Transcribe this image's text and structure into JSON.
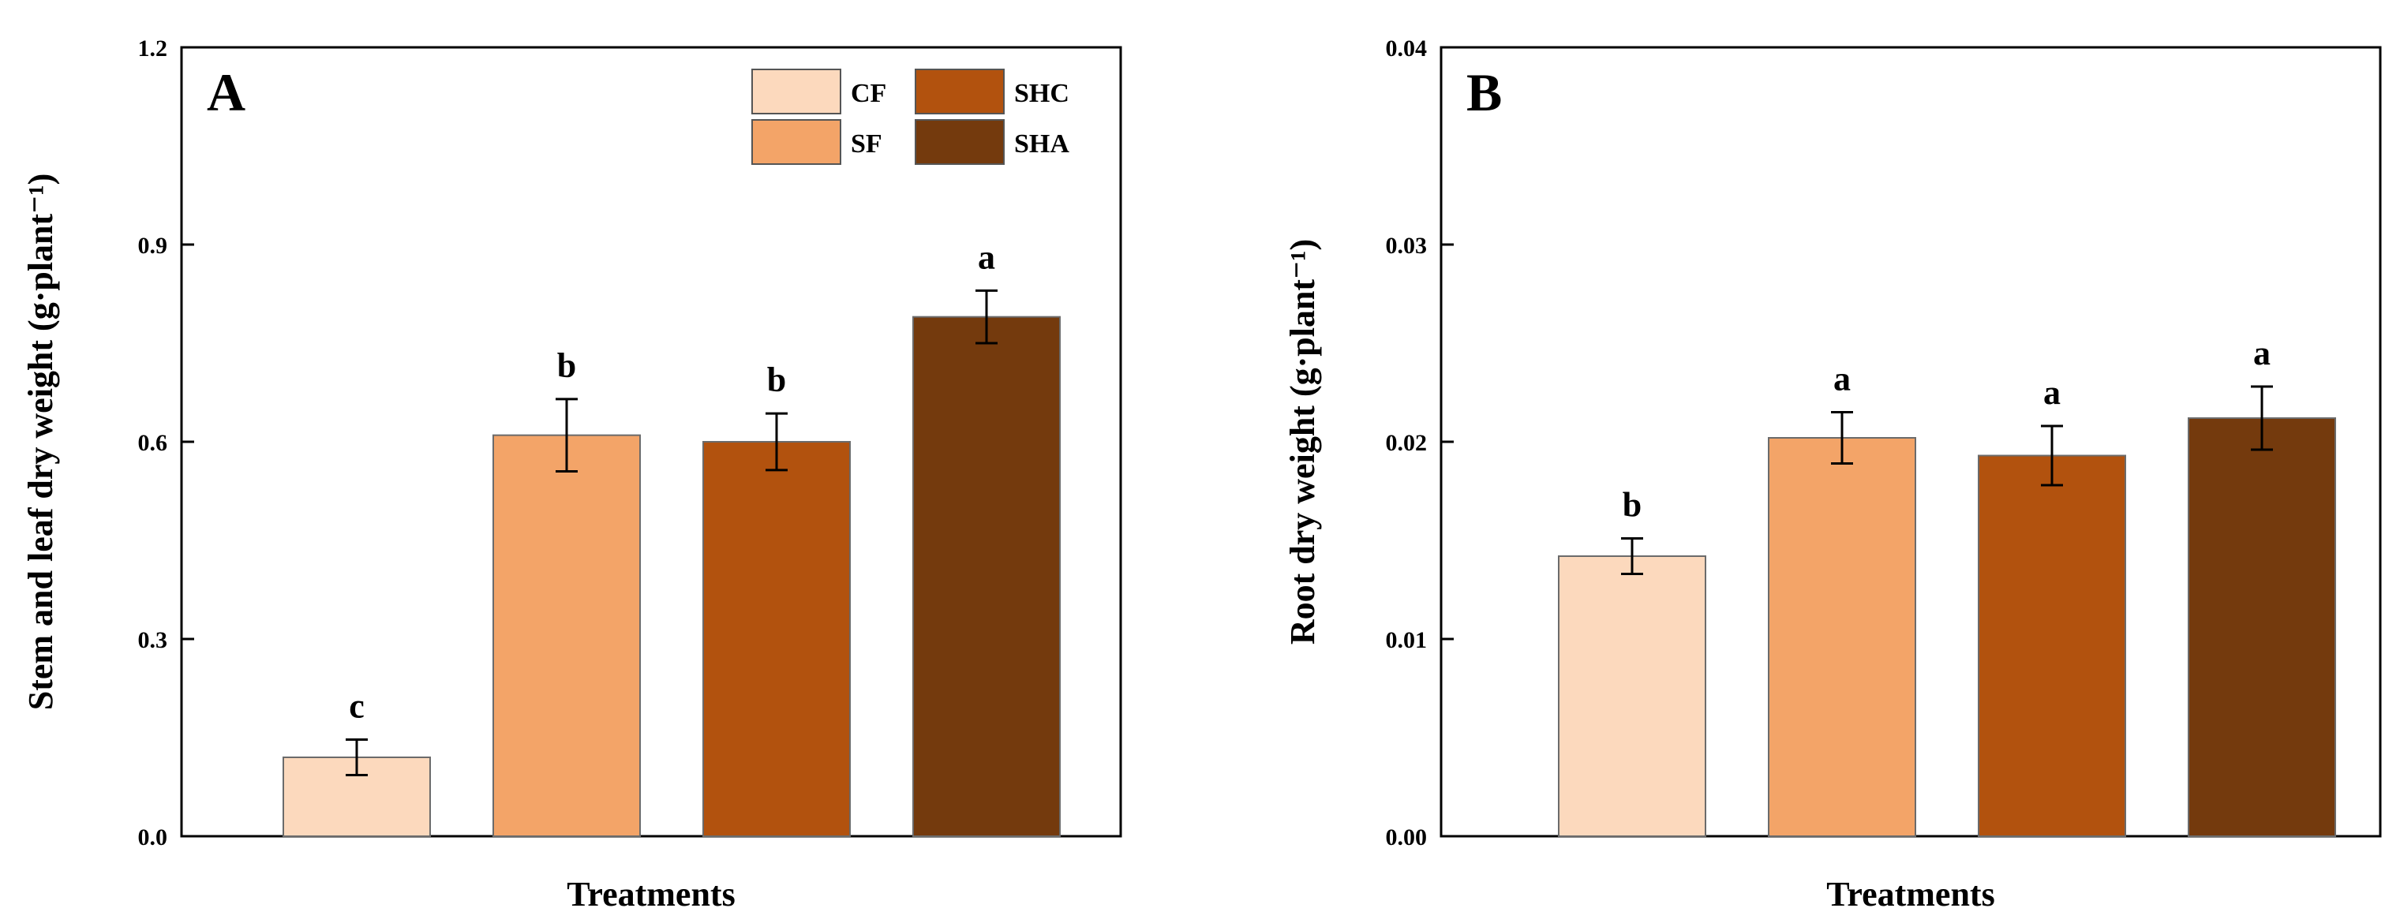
{
  "legend": {
    "entries": [
      {
        "label": "CF",
        "color": "#FCD9BD"
      },
      {
        "label": "SHC",
        "color": "#B2520E"
      },
      {
        "label": "SF",
        "color": "#F3A468"
      },
      {
        "label": "SHA",
        "color": "#743A0D"
      }
    ]
  },
  "chart_data": [
    {
      "type": "bar",
      "panel": "A",
      "categories": [
        "CF",
        "SF",
        "SHC",
        "SHA"
      ],
      "values": [
        0.12,
        0.61,
        0.6,
        0.79
      ],
      "errors": [
        0.027,
        0.055,
        0.043,
        0.04
      ],
      "significance": [
        "c",
        "b",
        "b",
        "a"
      ],
      "colors": [
        "#FCD9BD",
        "#F3A468",
        "#B2520E",
        "#743A0D"
      ],
      "xlabel": "Treatments",
      "ylabel": "Stem and leaf dry weight (g·plant⁻¹)",
      "ylim": [
        0,
        1.2
      ],
      "yticks": [
        "0.0",
        "0.3",
        "0.6",
        "0.9",
        "1.2"
      ],
      "legend_position": "top-right",
      "grid": false
    },
    {
      "type": "bar",
      "panel": "B",
      "categories": [
        "CF",
        "SF",
        "SHC",
        "SHA"
      ],
      "values": [
        0.0142,
        0.0202,
        0.0193,
        0.0212
      ],
      "errors": [
        0.0009,
        0.0013,
        0.0015,
        0.0016
      ],
      "significance": [
        "b",
        "a",
        "a",
        "a"
      ],
      "colors": [
        "#FCD9BD",
        "#F3A468",
        "#B2520E",
        "#743A0D"
      ],
      "xlabel": "Treatments",
      "ylabel": "Root dry weight (g·plant⁻¹)",
      "ylim": [
        0,
        0.04
      ],
      "yticks": [
        "0.00",
        "0.01",
        "0.02",
        "0.03",
        "0.04"
      ],
      "grid": false
    }
  ]
}
